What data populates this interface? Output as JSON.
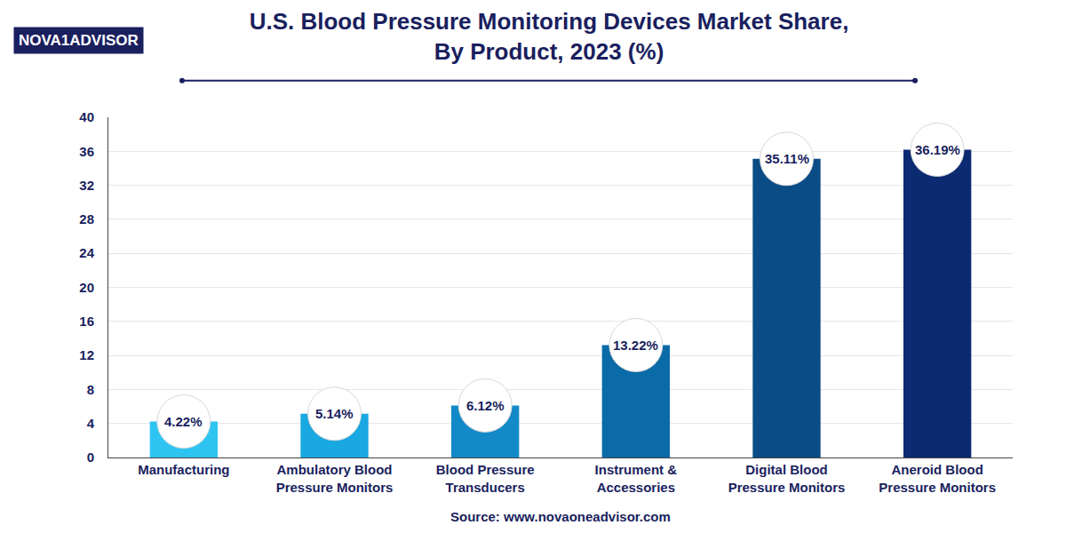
{
  "chart_data": {
    "type": "bar",
    "title": "U.S. Blood Pressure Monitoring Devices Market Share, By Product, 2023 (%)",
    "annotations": [
      "NOVA1ADVISOR",
      "Source: www.novaoneadvisor.com"
    ],
    "categories": [
      "Manufacturing",
      "Ambulatory Blood Pressure Monitors",
      "Blood Pressure Transducers",
      "Instrument & Accessories",
      "Digital Blood Pressure Monitors",
      "Aneroid Blood Pressure Monitors"
    ],
    "values": [
      4.22,
      5.14,
      6.12,
      13.22,
      35.11,
      36.19
    ],
    "value_labels": [
      "4.22%",
      "5.14%",
      "6.12%",
      "13.22%",
      "35.11%",
      "36.19%"
    ],
    "colors": [
      "#2ec4f2",
      "#1aa8e2",
      "#1489c8",
      "#0b6aa8",
      "#0a4c85",
      "#0b2a72"
    ],
    "ylim": [
      0,
      40
    ],
    "yticks": [
      0,
      4,
      8,
      12,
      16,
      20,
      24,
      28,
      32,
      36,
      40
    ],
    "grid": true,
    "data_labels": true
  }
}
